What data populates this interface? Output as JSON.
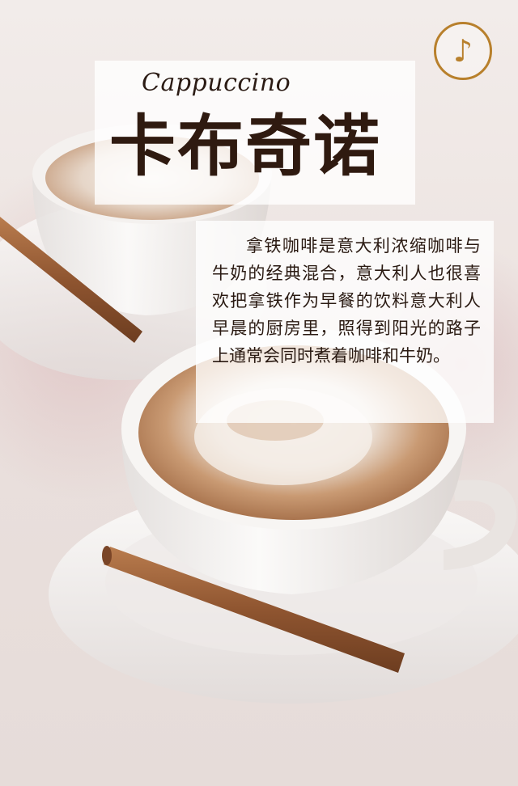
{
  "header": {
    "subtitle": "Cappuccino",
    "title": "卡布奇诺",
    "music_icon": "music-note-icon"
  },
  "description": {
    "text": "拿铁咖啡是意大利浓缩咖啡与牛奶的经典混合，意大利人也很喜欢把拿铁作为早餐的饮料意大利人早晨的厨房里，照得到阳光的路子上通常会同时煮着咖啡和牛奶。"
  },
  "colors": {
    "accent": "#b8802c",
    "title_text": "#2f1a10",
    "panel_bg": "#ffffff"
  }
}
